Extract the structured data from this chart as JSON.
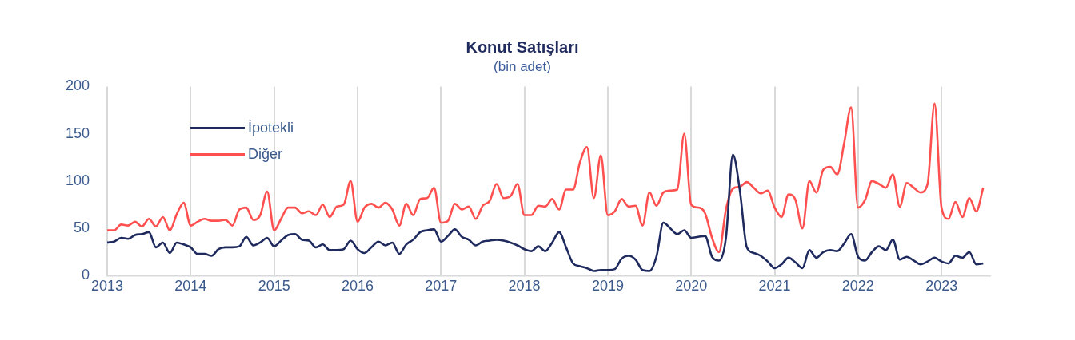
{
  "chart_data": {
    "type": "line",
    "title": "Konut Satışları",
    "subtitle": "(bin adet)",
    "x": [
      "2013-01",
      "2013-02",
      "2013-03",
      "2013-04",
      "2013-05",
      "2013-06",
      "2013-07",
      "2013-08",
      "2013-09",
      "2013-10",
      "2013-11",
      "2013-12",
      "2014-01",
      "2014-02",
      "2014-03",
      "2014-04",
      "2014-05",
      "2014-06",
      "2014-07",
      "2014-08",
      "2014-09",
      "2014-10",
      "2014-11",
      "2014-12",
      "2015-01",
      "2015-02",
      "2015-03",
      "2015-04",
      "2015-05",
      "2015-06",
      "2015-07",
      "2015-08",
      "2015-09",
      "2015-10",
      "2015-11",
      "2015-12",
      "2016-01",
      "2016-02",
      "2016-03",
      "2016-04",
      "2016-05",
      "2016-06",
      "2016-07",
      "2016-08",
      "2016-09",
      "2016-10",
      "2016-11",
      "2016-12",
      "2017-01",
      "2017-02",
      "2017-03",
      "2017-04",
      "2017-05",
      "2017-06",
      "2017-07",
      "2017-08",
      "2017-09",
      "2017-10",
      "2017-11",
      "2017-12",
      "2018-01",
      "2018-02",
      "2018-03",
      "2018-04",
      "2018-05",
      "2018-06",
      "2018-07",
      "2018-08",
      "2018-09",
      "2018-10",
      "2018-11",
      "2018-12",
      "2019-01",
      "2019-02",
      "2019-03",
      "2019-04",
      "2019-05",
      "2019-06",
      "2019-07",
      "2019-08",
      "2019-09",
      "2019-10",
      "2019-11",
      "2019-12",
      "2020-01",
      "2020-02",
      "2020-03",
      "2020-04",
      "2020-05",
      "2020-06",
      "2020-07",
      "2020-08",
      "2020-09",
      "2020-10",
      "2020-11",
      "2020-12",
      "2021-01",
      "2021-02",
      "2021-03",
      "2021-04",
      "2021-05",
      "2021-06",
      "2021-07",
      "2021-08",
      "2021-09",
      "2021-10",
      "2021-11",
      "2021-12",
      "2022-01",
      "2022-02",
      "2022-03",
      "2022-04",
      "2022-05",
      "2022-06",
      "2022-07",
      "2022-08",
      "2022-09",
      "2022-10",
      "2022-11",
      "2022-12",
      "2023-01",
      "2023-02",
      "2023-03",
      "2023-04",
      "2023-05",
      "2023-06",
      "2023-07"
    ],
    "series": [
      {
        "name": "İpotekli",
        "color": "#1f2a5e",
        "values": [
          35,
          36,
          40,
          39,
          43,
          44,
          46,
          30,
          35,
          24,
          35,
          33,
          30,
          23,
          23,
          21,
          28,
          30,
          30,
          31,
          41,
          32,
          35,
          40,
          31,
          37,
          43,
          44,
          38,
          37,
          30,
          33,
          27,
          27,
          28,
          37,
          28,
          24,
          30,
          36,
          32,
          35,
          23,
          33,
          38,
          46,
          48,
          49,
          36,
          42,
          49,
          41,
          38,
          32,
          36,
          37,
          38,
          37,
          35,
          32,
          28,
          26,
          31,
          26,
          35,
          46,
          30,
          13,
          10,
          8,
          5,
          6,
          6,
          7,
          18,
          21,
          17,
          6,
          5,
          20,
          56,
          50,
          44,
          48,
          40,
          41,
          42,
          20,
          16,
          40,
          128,
          90,
          30,
          24,
          21,
          15,
          8,
          12,
          19,
          14,
          8,
          27,
          19,
          25,
          27,
          26,
          34,
          44,
          20,
          16,
          25,
          31,
          27,
          38,
          17,
          20,
          16,
          12,
          15,
          19,
          15,
          13,
          21,
          19,
          25,
          12,
          13
        ]
      },
      {
        "name": "Diğer",
        "color": "#ff5050",
        "values": [
          48,
          48,
          54,
          53,
          57,
          52,
          60,
          52,
          62,
          48,
          65,
          77,
          53,
          57,
          60,
          58,
          58,
          59,
          53,
          70,
          72,
          59,
          64,
          89,
          48,
          60,
          72,
          72,
          66,
          68,
          64,
          75,
          62,
          73,
          75,
          100,
          57,
          72,
          76,
          72,
          77,
          70,
          53,
          76,
          64,
          81,
          82,
          93,
          56,
          58,
          76,
          70,
          73,
          60,
          74,
          79,
          97,
          82,
          84,
          97,
          64,
          64,
          74,
          73,
          81,
          70,
          91,
          91,
          120,
          136,
          82,
          127,
          64,
          68,
          81,
          73,
          74,
          53,
          88,
          74,
          88,
          90,
          91,
          150,
          75,
          72,
          66,
          40,
          25,
          70,
          92,
          94,
          99,
          93,
          87,
          90,
          72,
          62,
          86,
          80,
          50,
          100,
          88,
          112,
          115,
          107,
          140,
          178,
          72,
          80,
          100,
          97,
          93,
          107,
          73,
          98,
          93,
          88,
          97,
          182,
          72,
          60,
          78,
          62,
          82,
          68,
          93
        ]
      }
    ],
    "xlim": [
      "2013-01",
      "2023-08"
    ],
    "xticks": [
      "2013",
      "2014",
      "2015",
      "2016",
      "2017",
      "2018",
      "2019",
      "2020",
      "2021",
      "2022",
      "2023"
    ],
    "ylim": [
      0,
      200
    ],
    "yticks": [
      0,
      50,
      100,
      150,
      200
    ],
    "grid": "x",
    "legend": "top left",
    "marker": "none",
    "line_style": "solid"
  }
}
